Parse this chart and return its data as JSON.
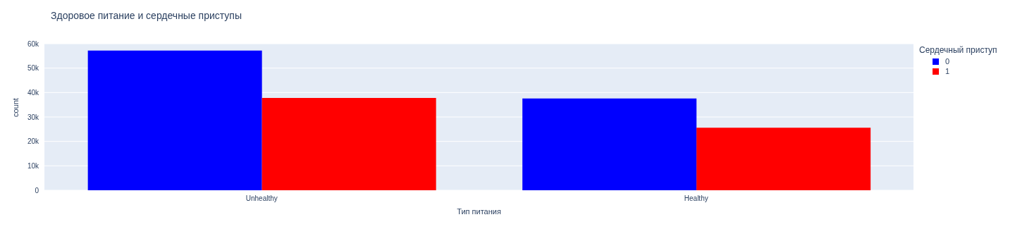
{
  "chart_data": {
    "type": "bar",
    "title": "Здоровое питание и сердечные приступы",
    "xlabel": "Тип питания",
    "ylabel": "count",
    "legend_title": "Сердечный приступ",
    "categories": [
      "Unhealthy",
      "Healthy"
    ],
    "series": [
      {
        "name": "0",
        "color": "#0000ff",
        "values": [
          57200,
          37600
        ]
      },
      {
        "name": "1",
        "color": "#ff0000",
        "values": [
          37800,
          25600
        ]
      }
    ],
    "ylim": [
      0,
      60000
    ],
    "yticks": [
      0,
      {
        "value": 10000,
        "label": "10k"
      },
      {
        "value": 20000,
        "label": "20k"
      },
      {
        "value": 30000,
        "label": "30k"
      },
      {
        "value": 40000,
        "label": "40k"
      },
      {
        "value": 50000,
        "label": "50k"
      },
      {
        "value": 60000,
        "label": "60k"
      }
    ],
    "grid": "y",
    "legend": "top right"
  }
}
